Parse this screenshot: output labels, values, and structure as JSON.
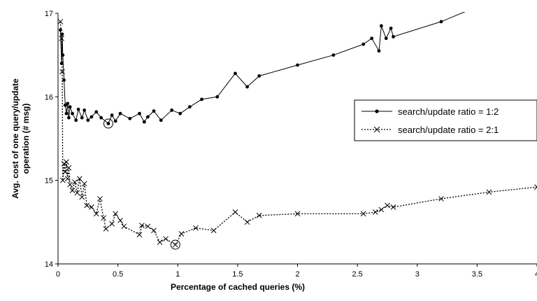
{
  "chart_data": {
    "type": "line",
    "title": "",
    "xlabel": "Percentage of cached queries (%)",
    "ylabel_line1": "Avg. cost of one query/update",
    "ylabel_line2": "operation   (# msg)",
    "xlim": [
      0,
      4
    ],
    "ylim": [
      14,
      17
    ],
    "xticks": [
      "0",
      "0.5",
      "1",
      "1.5",
      "2",
      "2.5",
      "3",
      "3.5",
      "4"
    ],
    "yticks": [
      "14",
      "15",
      "16",
      "17"
    ],
    "grid": false,
    "legend_position": "right",
    "series": [
      {
        "name": "search/update ratio = 1:2",
        "line_style": "solid",
        "marker": "dot",
        "color": "#000000",
        "highlight": {
          "x": 0.42,
          "y": 15.68
        },
        "points": [
          [
            0.02,
            16.8
          ],
          [
            0.03,
            16.4
          ],
          [
            0.035,
            16.75
          ],
          [
            0.04,
            16.5
          ],
          [
            0.05,
            16.2
          ],
          [
            0.06,
            15.9
          ],
          [
            0.07,
            15.8
          ],
          [
            0.08,
            15.92
          ],
          [
            0.09,
            15.75
          ],
          [
            0.1,
            15.88
          ],
          [
            0.12,
            15.8
          ],
          [
            0.15,
            15.72
          ],
          [
            0.17,
            15.85
          ],
          [
            0.2,
            15.75
          ],
          [
            0.22,
            15.84
          ],
          [
            0.25,
            15.72
          ],
          [
            0.28,
            15.76
          ],
          [
            0.32,
            15.82
          ],
          [
            0.36,
            15.75
          ],
          [
            0.42,
            15.68
          ],
          [
            0.45,
            15.78
          ],
          [
            0.48,
            15.71
          ],
          [
            0.52,
            15.8
          ],
          [
            0.6,
            15.74
          ],
          [
            0.68,
            15.8
          ],
          [
            0.72,
            15.7
          ],
          [
            0.75,
            15.76
          ],
          [
            0.8,
            15.83
          ],
          [
            0.86,
            15.72
          ],
          [
            0.95,
            15.84
          ],
          [
            1.02,
            15.8
          ],
          [
            1.1,
            15.88
          ],
          [
            1.2,
            15.97
          ],
          [
            1.33,
            16.0
          ],
          [
            1.48,
            16.28
          ],
          [
            1.58,
            16.12
          ],
          [
            1.68,
            16.25
          ],
          [
            2.0,
            16.38
          ],
          [
            2.3,
            16.5
          ],
          [
            2.55,
            16.63
          ],
          [
            2.62,
            16.7
          ],
          [
            2.68,
            16.55
          ],
          [
            2.7,
            16.85
          ],
          [
            2.74,
            16.7
          ],
          [
            2.78,
            16.82
          ],
          [
            2.8,
            16.72
          ],
          [
            3.2,
            16.9
          ],
          [
            3.5,
            17.08
          ]
        ]
      },
      {
        "name": "search/update ratio = 2:1",
        "line_style": "dotted",
        "marker": "x",
        "color": "#000000",
        "highlight": {
          "x": 0.98,
          "y": 14.23
        },
        "points": [
          [
            0.02,
            16.9
          ],
          [
            0.03,
            16.7
          ],
          [
            0.035,
            16.3
          ],
          [
            0.04,
            15.0
          ],
          [
            0.05,
            15.2
          ],
          [
            0.06,
            15.1
          ],
          [
            0.07,
            15.22
          ],
          [
            0.08,
            15.02
          ],
          [
            0.09,
            15.15
          ],
          [
            0.1,
            14.95
          ],
          [
            0.12,
            14.88
          ],
          [
            0.14,
            14.98
          ],
          [
            0.16,
            14.85
          ],
          [
            0.18,
            15.02
          ],
          [
            0.2,
            14.8
          ],
          [
            0.22,
            14.96
          ],
          [
            0.24,
            14.7
          ],
          [
            0.28,
            14.68
          ],
          [
            0.32,
            14.6
          ],
          [
            0.35,
            14.78
          ],
          [
            0.38,
            14.55
          ],
          [
            0.4,
            14.42
          ],
          [
            0.45,
            14.48
          ],
          [
            0.48,
            14.6
          ],
          [
            0.52,
            14.52
          ],
          [
            0.55,
            14.45
          ],
          [
            0.68,
            14.35
          ],
          [
            0.7,
            14.46
          ],
          [
            0.75,
            14.45
          ],
          [
            0.8,
            14.4
          ],
          [
            0.85,
            14.26
          ],
          [
            0.9,
            14.3
          ],
          [
            0.98,
            14.23
          ],
          [
            1.03,
            14.36
          ],
          [
            1.15,
            14.43
          ],
          [
            1.3,
            14.4
          ],
          [
            1.48,
            14.62
          ],
          [
            1.58,
            14.5
          ],
          [
            1.68,
            14.58
          ],
          [
            2.0,
            14.6
          ],
          [
            2.55,
            14.6
          ],
          [
            2.65,
            14.62
          ],
          [
            2.7,
            14.65
          ],
          [
            2.75,
            14.7
          ],
          [
            2.8,
            14.68
          ],
          [
            3.2,
            14.78
          ],
          [
            3.6,
            14.86
          ],
          [
            4.0,
            14.92
          ]
        ]
      }
    ]
  }
}
